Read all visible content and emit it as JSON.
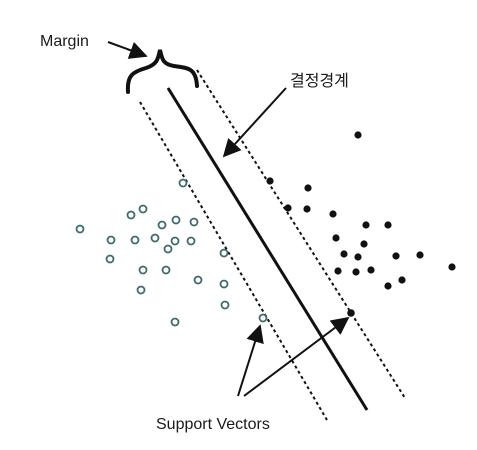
{
  "labels": {
    "margin": "Margin",
    "decision_boundary": "결정경계",
    "support_vectors": "Support Vectors"
  },
  "colors": {
    "ink": "#111111",
    "open_point": "#3e6b6b",
    "text": "#1a1a1a"
  },
  "icons": {
    "margin_bracket": "curly-brace-icon",
    "pointer": "arrow-icon"
  }
}
